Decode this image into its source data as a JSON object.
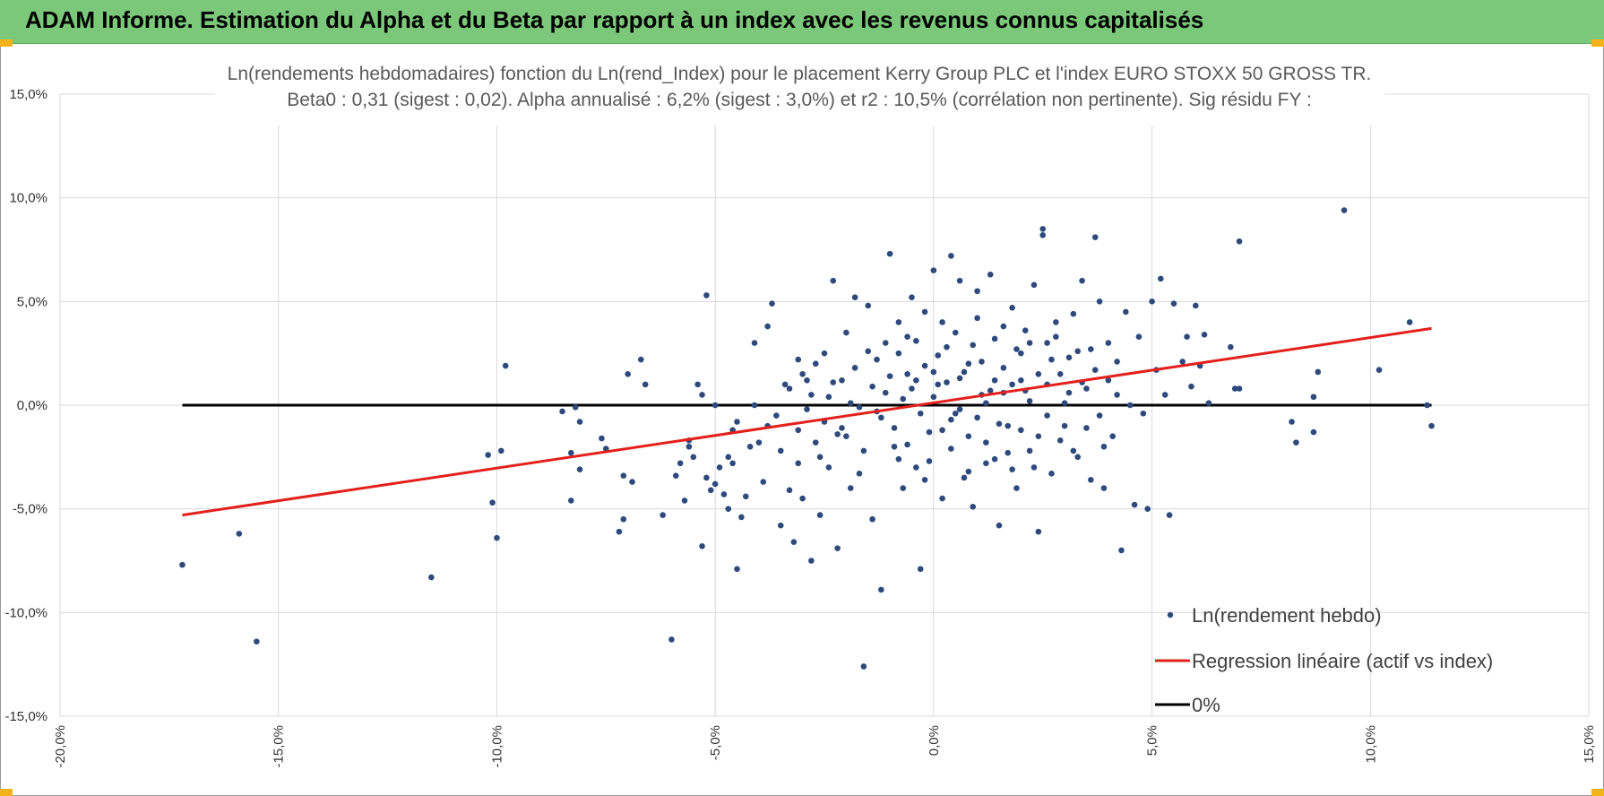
{
  "header": {
    "title": "ADAM Informe. Estimation du Alpha et du Beta par rapport à un index avec les revenus connus capitalisés"
  },
  "colors": {
    "header_bg": "#7cc87a",
    "corner_accent": "#f2b21a",
    "points": "#2e4a7d",
    "regression": "#e3201b",
    "zero_line": "#000000",
    "grid": "#d9d9d9"
  },
  "chart_data": {
    "type": "scatter",
    "title": "Ln(rendements hebdomadaires) fonction du Ln(rend_Index) pour le placement Kerry Group PLC et l'index EURO STOXX 50 GROSS TR.",
    "subtitle": "Beta0 : 0,31 (sigest : 0,02).  Alpha annualisé : 6,2% (sigest : 3,0%) et r2 : 10,5% (corrélation non pertinente). Sig résidu FY :",
    "xlabel": "",
    "ylabel": "",
    "xlim": [
      -0.2,
      0.15
    ],
    "ylim": [
      -0.15,
      0.15
    ],
    "grid": true,
    "legend_position": "bottom-right",
    "x_ticks": [
      "-20,0%",
      "-15,0%",
      "-10,0%",
      "-5,0%",
      "0,0%",
      "5,0%",
      "10,0%",
      "15,0%"
    ],
    "x_tick_values": [
      -0.2,
      -0.15,
      -0.1,
      -0.05,
      0.0,
      0.05,
      0.1,
      0.15
    ],
    "y_ticks": [
      "15,0%",
      "10,0%",
      "5,0%",
      "0,0%",
      "-5,0%",
      "-10,0%",
      "-15,0%"
    ],
    "y_tick_values": [
      0.15,
      0.1,
      0.05,
      0.0,
      -0.05,
      -0.1,
      -0.15
    ],
    "series": [
      {
        "name": "Ln(rendement hebdo)",
        "kind": "scatter",
        "points": [
          [
            -0.172,
            -0.077
          ],
          [
            -0.159,
            -0.062
          ],
          [
            -0.155,
            -0.114
          ],
          [
            -0.115,
            -0.083
          ],
          [
            -0.102,
            -0.024
          ],
          [
            -0.101,
            -0.047
          ],
          [
            -0.1,
            -0.064
          ],
          [
            -0.099,
            -0.022
          ],
          [
            -0.098,
            0.019
          ],
          [
            -0.085,
            -0.003
          ],
          [
            -0.083,
            -0.023
          ],
          [
            -0.083,
            -0.046
          ],
          [
            -0.082,
            -0.001
          ],
          [
            -0.081,
            -0.008
          ],
          [
            -0.081,
            -0.031
          ],
          [
            -0.076,
            -0.016
          ],
          [
            -0.075,
            -0.021
          ],
          [
            -0.072,
            -0.061
          ],
          [
            -0.071,
            -0.034
          ],
          [
            -0.071,
            -0.055
          ],
          [
            -0.07,
            0.015
          ],
          [
            -0.069,
            -0.037
          ],
          [
            -0.067,
            0.022
          ],
          [
            -0.066,
            0.01
          ],
          [
            -0.062,
            -0.053
          ],
          [
            -0.06,
            -0.113
          ],
          [
            -0.059,
            -0.034
          ],
          [
            -0.058,
            -0.028
          ],
          [
            -0.057,
            -0.046
          ],
          [
            -0.056,
            -0.017
          ],
          [
            -0.056,
            -0.02
          ],
          [
            -0.055,
            -0.025
          ],
          [
            -0.054,
            0.01
          ],
          [
            -0.053,
            0.005
          ],
          [
            -0.052,
            -0.035
          ],
          [
            -0.051,
            -0.041
          ],
          [
            -0.05,
            -0.038
          ],
          [
            -0.049,
            -0.03
          ],
          [
            -0.047,
            -0.05
          ],
          [
            -0.046,
            -0.028
          ],
          [
            -0.045,
            -0.008
          ],
          [
            -0.053,
            -0.068
          ],
          [
            -0.052,
            0.053
          ],
          [
            -0.05,
            0.0
          ],
          [
            -0.048,
            -0.043
          ],
          [
            -0.047,
            -0.025
          ],
          [
            -0.046,
            -0.012
          ],
          [
            -0.045,
            -0.079
          ],
          [
            -0.044,
            -0.054
          ],
          [
            -0.043,
            -0.044
          ],
          [
            -0.042,
            -0.02
          ],
          [
            -0.041,
            0.03
          ],
          [
            -0.041,
            0.0
          ],
          [
            -0.04,
            -0.018
          ],
          [
            -0.039,
            -0.037
          ],
          [
            -0.038,
            0.038
          ],
          [
            -0.038,
            -0.01
          ],
          [
            -0.037,
            0.049
          ],
          [
            -0.036,
            -0.005
          ],
          [
            -0.035,
            -0.058
          ],
          [
            -0.034,
            0.01
          ],
          [
            -0.033,
            -0.041
          ],
          [
            -0.032,
            -0.066
          ],
          [
            -0.031,
            0.022
          ],
          [
            -0.031,
            -0.028
          ],
          [
            -0.03,
            -0.045
          ],
          [
            -0.029,
            0.012
          ],
          [
            -0.028,
            -0.075
          ],
          [
            -0.027,
            -0.018
          ],
          [
            -0.026,
            -0.053
          ],
          [
            -0.025,
            0.025
          ],
          [
            -0.024,
            -0.03
          ],
          [
            -0.023,
            0.06
          ],
          [
            -0.022,
            -0.069
          ],
          [
            -0.021,
            -0.011
          ],
          [
            -0.02,
            0.035
          ],
          [
            -0.019,
            -0.04
          ],
          [
            -0.018,
            0.052
          ],
          [
            -0.017,
            -0.001
          ],
          [
            -0.016,
            -0.126
          ],
          [
            -0.015,
            0.048
          ],
          [
            -0.014,
            -0.055
          ],
          [
            -0.013,
            0.022
          ],
          [
            -0.012,
            -0.089
          ],
          [
            -0.011,
            0.03
          ],
          [
            -0.01,
            0.073
          ],
          [
            -0.009,
            -0.02
          ],
          [
            -0.008,
            0.04
          ],
          [
            -0.007,
            -0.04
          ],
          [
            -0.006,
            0.015
          ],
          [
            -0.005,
            0.052
          ],
          [
            -0.004,
            -0.03
          ],
          [
            -0.003,
            -0.079
          ],
          [
            -0.002,
            0.045
          ],
          [
            -0.001,
            -0.013
          ],
          [
            0.0,
            0.065
          ],
          [
            0.001,
            0.01
          ],
          [
            0.002,
            -0.045
          ],
          [
            0.003,
            0.028
          ],
          [
            0.004,
            0.072
          ],
          [
            0.005,
            -0.004
          ],
          [
            0.006,
            0.06
          ],
          [
            0.007,
            -0.035
          ],
          [
            0.008,
            0.02
          ],
          [
            0.009,
            -0.049
          ],
          [
            0.01,
            0.055
          ],
          [
            0.011,
            0.005
          ],
          [
            0.012,
            -0.028
          ],
          [
            0.013,
            0.063
          ],
          [
            0.014,
            0.012
          ],
          [
            0.015,
            -0.058
          ],
          [
            0.016,
            0.038
          ],
          [
            0.017,
            -0.01
          ],
          [
            0.018,
            0.047
          ],
          [
            0.019,
            -0.04
          ],
          [
            0.02,
            0.025
          ],
          [
            0.021,
            0.007
          ],
          [
            0.022,
            -0.022
          ],
          [
            0.023,
            0.058
          ],
          [
            0.024,
            -0.061
          ],
          [
            0.025,
            0.085
          ],
          [
            0.025,
            0.082
          ],
          [
            0.026,
            0.03
          ],
          [
            0.027,
            -0.033
          ],
          [
            0.028,
            0.04
          ],
          [
            0.029,
            0.015
          ],
          [
            0.03,
            -0.01
          ],
          [
            0.031,
            0.023
          ],
          [
            0.032,
            0.044
          ],
          [
            0.033,
            -0.025
          ],
          [
            0.034,
            0.06
          ],
          [
            0.035,
            0.008
          ],
          [
            0.036,
            -0.036
          ],
          [
            0.037,
            0.081
          ],
          [
            0.038,
            0.05
          ],
          [
            0.039,
            -0.04
          ],
          [
            0.04,
            0.012
          ],
          [
            0.041,
            -0.015
          ],
          [
            0.042,
            0.021
          ],
          [
            0.043,
            -0.07
          ],
          [
            0.044,
            0.045
          ],
          [
            0.045,
            0.0
          ],
          [
            0.046,
            -0.048
          ],
          [
            0.047,
            0.033
          ],
          [
            0.048,
            -0.004
          ],
          [
            0.049,
            -0.05
          ],
          [
            0.05,
            0.05
          ],
          [
            0.051,
            0.017
          ],
          [
            0.052,
            0.061
          ],
          [
            0.053,
            0.005
          ],
          [
            0.054,
            -0.053
          ],
          [
            0.055,
            0.049
          ],
          [
            0.057,
            0.021
          ],
          [
            0.058,
            0.033
          ],
          [
            0.059,
            0.009
          ],
          [
            0.06,
            0.048
          ],
          [
            0.061,
            0.019
          ],
          [
            0.062,
            0.034
          ],
          [
            0.063,
            0.001
          ],
          [
            0.068,
            0.028
          ],
          [
            0.069,
            0.008
          ],
          [
            0.07,
            0.079
          ],
          [
            0.07,
            0.008
          ],
          [
            0.082,
            -0.008
          ],
          [
            0.083,
            -0.018
          ],
          [
            0.087,
            0.004
          ],
          [
            0.087,
            -0.013
          ],
          [
            0.088,
            0.016
          ],
          [
            0.094,
            0.094
          ],
          [
            0.102,
            0.017
          ],
          [
            0.109,
            0.04
          ],
          [
            0.113,
            0.0
          ],
          [
            0.114,
            -0.01
          ],
          [
            -0.03,
            0.015
          ],
          [
            -0.028,
            0.005
          ],
          [
            -0.025,
            -0.008
          ],
          [
            -0.023,
            0.011
          ],
          [
            -0.02,
            -0.015
          ],
          [
            -0.018,
            0.018
          ],
          [
            -0.016,
            -0.022
          ],
          [
            -0.014,
            0.009
          ],
          [
            -0.012,
            -0.006
          ],
          [
            -0.01,
            0.014
          ],
          [
            -0.009,
            -0.011
          ],
          [
            -0.008,
            0.025
          ],
          [
            -0.007,
            0.003
          ],
          [
            -0.006,
            -0.019
          ],
          [
            -0.005,
            0.008
          ],
          [
            -0.004,
            0.031
          ],
          [
            -0.003,
            -0.004
          ],
          [
            -0.002,
            0.019
          ],
          [
            -0.001,
            -0.027
          ],
          [
            0.0,
            0.004
          ],
          [
            0.001,
            0.024
          ],
          [
            0.002,
            -0.012
          ],
          [
            0.003,
            0.011
          ],
          [
            0.004,
            -0.021
          ],
          [
            0.005,
            0.035
          ],
          [
            0.006,
            -0.002
          ],
          [
            0.007,
            0.016
          ],
          [
            0.008,
            -0.015
          ],
          [
            0.009,
            0.029
          ],
          [
            0.01,
            -0.006
          ],
          [
            0.011,
            0.021
          ],
          [
            0.012,
            -0.018
          ],
          [
            0.013,
            0.007
          ],
          [
            0.014,
            0.032
          ],
          [
            0.015,
            -0.009
          ],
          [
            0.016,
            0.018
          ],
          [
            0.017,
            -0.023
          ],
          [
            0.018,
            0.01
          ],
          [
            0.019,
            0.027
          ],
          [
            0.02,
            -0.012
          ],
          [
            0.021,
            0.036
          ],
          [
            0.022,
            0.002
          ],
          [
            0.023,
            -0.03
          ],
          [
            0.024,
            0.015
          ],
          [
            0.026,
            -0.005
          ],
          [
            0.027,
            0.022
          ],
          [
            0.029,
            -0.017
          ],
          [
            0.031,
            0.006
          ],
          [
            0.033,
            0.026
          ],
          [
            0.035,
            -0.011
          ],
          [
            0.037,
            0.017
          ],
          [
            0.039,
            -0.02
          ],
          [
            -0.035,
            -0.022
          ],
          [
            -0.033,
            0.008
          ],
          [
            -0.031,
            -0.012
          ],
          [
            -0.029,
            -0.002
          ],
          [
            -0.027,
            0.02
          ],
          [
            -0.026,
            -0.025
          ],
          [
            -0.024,
            0.004
          ],
          [
            -0.022,
            -0.014
          ],
          [
            -0.021,
            0.012
          ],
          [
            -0.019,
            0.001
          ],
          [
            -0.017,
            -0.033
          ],
          [
            -0.015,
            0.026
          ],
          [
            -0.013,
            -0.003
          ],
          [
            -0.011,
            0.006
          ],
          [
            -0.008,
            -0.026
          ],
          [
            -0.006,
            0.033
          ],
          [
            -0.004,
            0.012
          ],
          [
            -0.002,
            -0.036
          ],
          [
            0.0,
            0.016
          ],
          [
            0.002,
            0.04
          ],
          [
            0.004,
            -0.007
          ],
          [
            0.006,
            0.013
          ],
          [
            0.008,
            -0.032
          ],
          [
            0.01,
            0.042
          ],
          [
            0.012,
            0.001
          ],
          [
            0.014,
            -0.026
          ],
          [
            0.016,
            0.006
          ],
          [
            0.018,
            -0.031
          ],
          [
            0.02,
            0.012
          ],
          [
            0.022,
            0.03
          ],
          [
            0.024,
            -0.015
          ],
          [
            0.026,
            0.01
          ],
          [
            0.028,
            0.033
          ],
          [
            0.03,
            0.001
          ],
          [
            0.032,
            -0.022
          ],
          [
            0.034,
            0.011
          ],
          [
            0.036,
            0.027
          ],
          [
            0.038,
            -0.005
          ],
          [
            0.04,
            0.03
          ],
          [
            0.042,
            0.005
          ]
        ]
      },
      {
        "name": "Regression linéaire (actif vs index)",
        "kind": "line",
        "points": [
          [
            -0.172,
            -0.053
          ],
          [
            0.114,
            0.037
          ]
        ]
      },
      {
        "name": "0%",
        "kind": "line",
        "points": [
          [
            -0.172,
            0.0
          ],
          [
            0.114,
            0.0
          ]
        ]
      }
    ]
  }
}
